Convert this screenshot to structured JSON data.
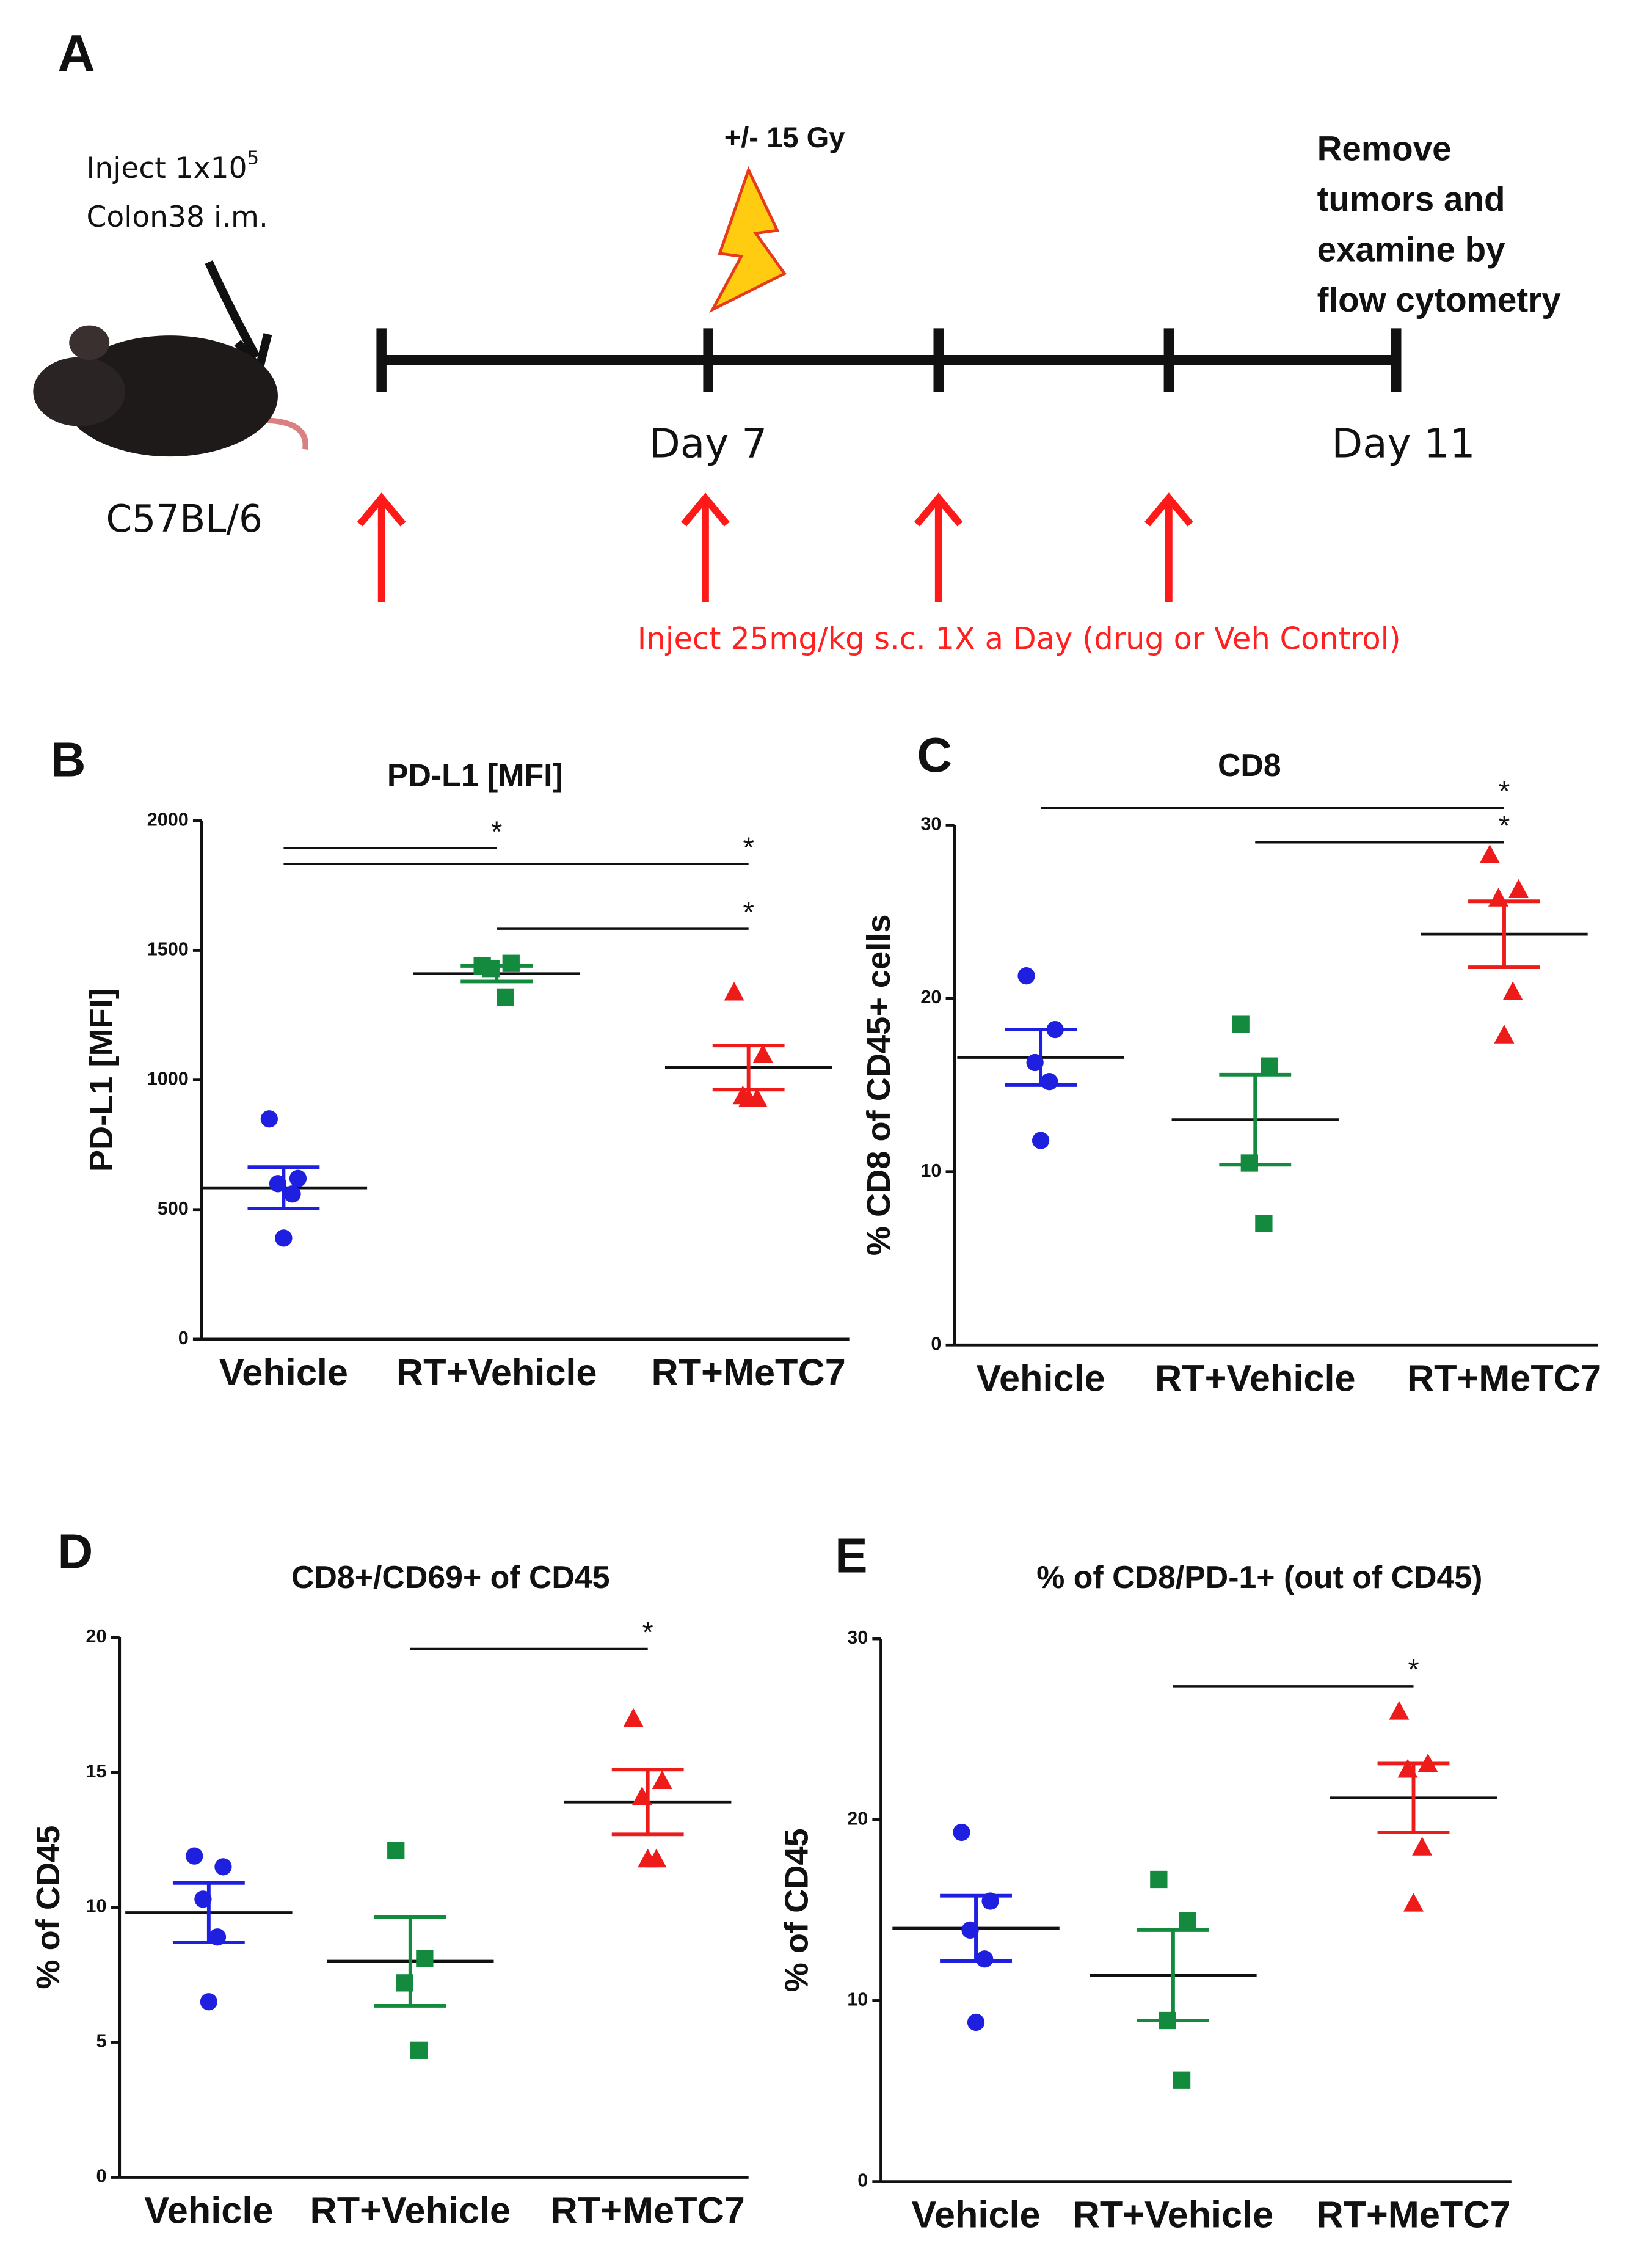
{
  "timeline": {
    "label": "A",
    "inject_text": "Inject 1x10",
    "inject_exp": "5",
    "inject_line2": "Colon38 i.m.",
    "strain": "C57BL/6",
    "radiation": "+/- 15 Gy",
    "endpoint": [
      "Remove",
      "tumors and",
      "examine by",
      "flow cytometry"
    ],
    "day_labels": [
      "Day 7",
      "Day 11"
    ],
    "treatment": "Inject 25mg/kg s.c. 1X a Day (drug or Veh Control)"
  },
  "chart_data": [
    {
      "type": "dot",
      "panel": "B",
      "title": "PD-L1  [MFI]",
      "y_label": "PD-L1 [MFI]",
      "ylim": [
        0,
        2000
      ],
      "yticks": [
        0,
        500,
        1000,
        1500,
        2000
      ],
      "series": [
        {
          "name": "Vehicle",
          "color": "#1f1fe0",
          "marker": "circle",
          "values": [
            850,
            620,
            600,
            560,
            390
          ],
          "mean": 584,
          "sem": 80
        },
        {
          "name": "RT+Vehicle",
          "color": "#138a3e",
          "marker": "square",
          "values": [
            1440,
            1450,
            1430,
            1320
          ],
          "mean": 1410,
          "sem": 30
        },
        {
          "name": "RT+MeTC7",
          "color": "#ee1b1b",
          "marker": "triangle",
          "values": [
            1340,
            1100,
            940,
            930,
            930
          ],
          "mean": 1048,
          "sem": 85
        }
      ],
      "comparisons": [
        {
          "from": 0,
          "to": 1,
          "label": "*"
        },
        {
          "from": 0,
          "to": 2,
          "label": "*"
        },
        {
          "from": 1,
          "to": 2,
          "label": "*"
        }
      ]
    },
    {
      "type": "dot",
      "panel": "C",
      "title": "CD8",
      "y_label": "% CD8 of CD45+ cells",
      "ylim": [
        0,
        30
      ],
      "yticks": [
        0,
        10,
        20,
        30
      ],
      "series": [
        {
          "name": "Vehicle",
          "color": "#1f1fe0",
          "marker": "circle",
          "values": [
            21.3,
            18.2,
            16.3,
            15.2,
            11.8
          ],
          "mean": 16.6,
          "sem": 1.6
        },
        {
          "name": "RT+Vehicle",
          "color": "#138a3e",
          "marker": "square",
          "values": [
            18.5,
            16.1,
            10.5,
            7.0
          ],
          "mean": 13.0,
          "sem": 2.6
        },
        {
          "name": "RT+MeTC7",
          "color": "#ee1b1b",
          "marker": "triangle",
          "values": [
            28.3,
            26.3,
            25.8,
            20.4,
            17.9
          ],
          "mean": 23.7,
          "sem": 1.9
        }
      ],
      "comparisons": [
        {
          "from": 0,
          "to": 2,
          "label": "*"
        },
        {
          "from": 1,
          "to": 2,
          "label": "*"
        }
      ]
    },
    {
      "type": "dot",
      "panel": "D",
      "title": "CD8+/CD69+ of CD45",
      "y_label": "% of CD45",
      "ylim": [
        0,
        20
      ],
      "yticks": [
        0,
        5,
        10,
        15,
        20
      ],
      "series": [
        {
          "name": "Vehicle",
          "color": "#1f1fe0",
          "marker": "circle",
          "values": [
            11.9,
            11.5,
            10.3,
            8.9,
            6.5
          ],
          "mean": 9.8,
          "sem": 1.1
        },
        {
          "name": "RT+Vehicle",
          "color": "#138a3e",
          "marker": "square",
          "values": [
            12.1,
            8.1,
            7.2,
            4.7
          ],
          "mean": 8.0,
          "sem": 1.65
        },
        {
          "name": "RT+MeTC7",
          "color": "#ee1b1b",
          "marker": "triangle",
          "values": [
            17.0,
            14.7,
            14.1,
            11.8,
            11.8
          ],
          "mean": 13.9,
          "sem": 1.2
        }
      ],
      "comparisons": [
        {
          "from": 1,
          "to": 2,
          "label": "*"
        }
      ]
    },
    {
      "type": "dot",
      "panel": "E",
      "title": "% of CD8/PD-1+ (out of CD45)",
      "y_label": "% of CD45",
      "ylim": [
        0,
        30
      ],
      "yticks": [
        0,
        10,
        20,
        30
      ],
      "series": [
        {
          "name": "Vehicle",
          "color": "#1f1fe0",
          "marker": "circle",
          "values": [
            19.3,
            15.5,
            13.9,
            12.3,
            8.8
          ],
          "mean": 14.0,
          "sem": 1.8
        },
        {
          "name": "RT+Vehicle",
          "color": "#138a3e",
          "marker": "square",
          "values": [
            16.7,
            14.4,
            8.9,
            5.6
          ],
          "mean": 11.4,
          "sem": 2.5
        },
        {
          "name": "RT+MeTC7",
          "color": "#ee1b1b",
          "marker": "triangle",
          "values": [
            26.0,
            23.1,
            22.8,
            18.5,
            15.4
          ],
          "mean": 21.2,
          "sem": 1.9
        }
      ],
      "comparisons": [
        {
          "from": 1,
          "to": 2,
          "label": "*"
        }
      ]
    }
  ]
}
